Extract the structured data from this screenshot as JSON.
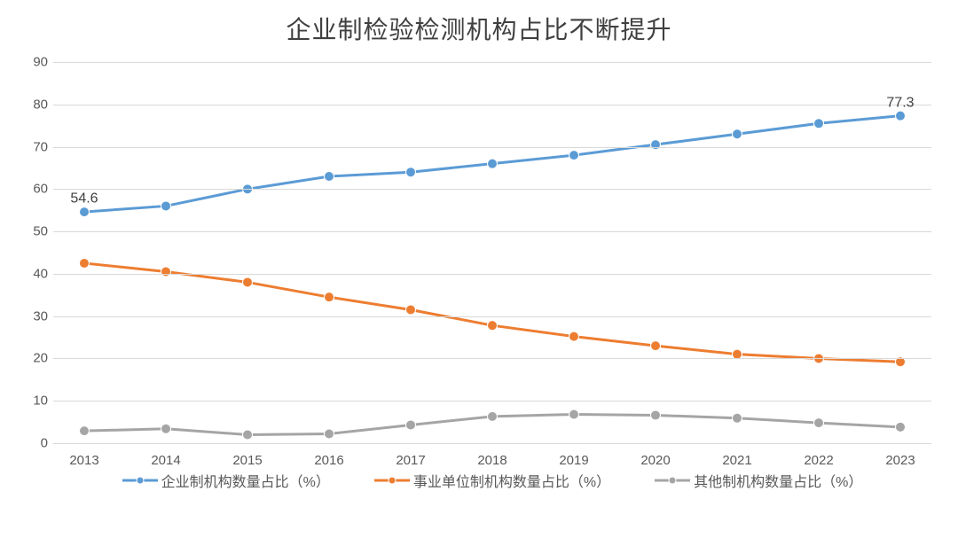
{
  "chart": {
    "type": "line",
    "title": "企业制检验检测机构占比不断提升",
    "title_fontsize": 28,
    "background_color": "#ffffff",
    "grid_color": "#d9d9d9",
    "axis_font_color": "#595959",
    "axis_fontsize": 15,
    "x_categories": [
      "2013",
      "2014",
      "2015",
      "2016",
      "2017",
      "2018",
      "2019",
      "2020",
      "2021",
      "2022",
      "2023"
    ],
    "ylim": [
      0,
      90
    ],
    "ytick_step": 10,
    "series": [
      {
        "name": "企业制机构数量占比（%）",
        "color": "#5b9bd5",
        "line_width": 3,
        "marker_radius": 5.5,
        "values": [
          54.6,
          56.0,
          60.0,
          63.0,
          64.0,
          66.0,
          68.0,
          70.5,
          73.0,
          75.5,
          77.3
        ],
        "data_labels": {
          "0": "54.6",
          "10": "77.3"
        }
      },
      {
        "name": "事业单位制机构数量占比（%）",
        "color": "#ed7d31",
        "line_width": 3,
        "marker_radius": 5.5,
        "values": [
          42.5,
          40.5,
          38.0,
          34.5,
          31.5,
          27.8,
          25.2,
          23.0,
          21.0,
          20.0,
          19.2
        ]
      },
      {
        "name": "其他制机构数量占比（%）",
        "color": "#a5a5a5",
        "line_width": 3,
        "marker_radius": 5.5,
        "values": [
          2.9,
          3.4,
          2.0,
          2.2,
          4.3,
          6.3,
          6.8,
          6.6,
          5.9,
          4.8,
          3.8
        ]
      }
    ],
    "legend_position": "bottom"
  }
}
